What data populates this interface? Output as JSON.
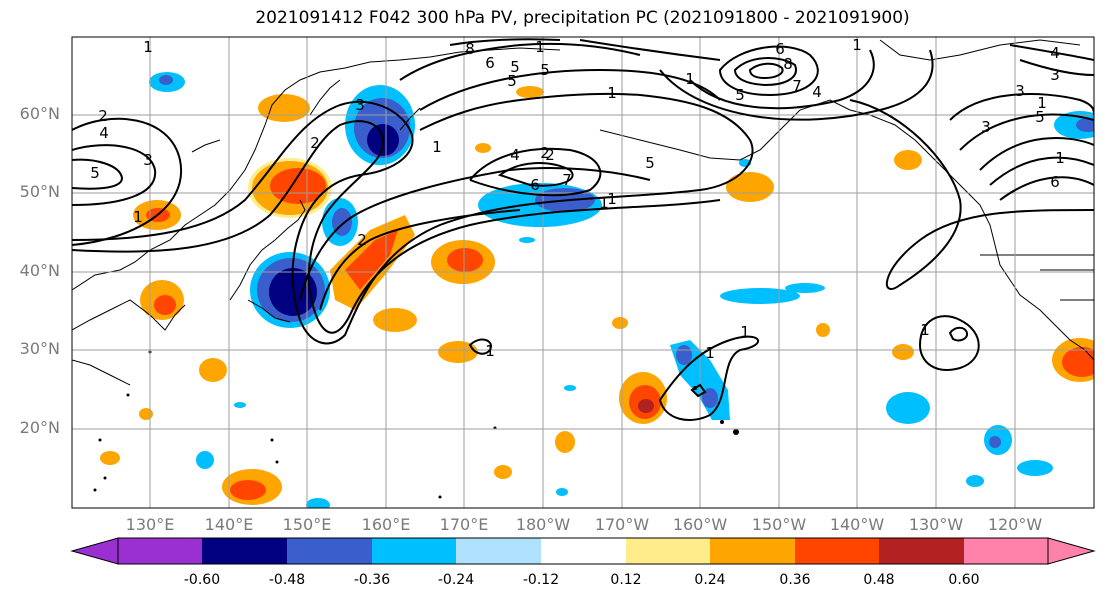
{
  "title": "2021091412 F042 300 hPa PV, precipitation PC (2021091800 - 2021091900)",
  "lat_labels": [
    "60°N",
    "50°N",
    "40°N",
    "30°N",
    "20°N"
  ],
  "lon_labels": [
    "130°E",
    "140°E",
    "150°E",
    "160°E",
    "170°E",
    "180°W",
    "170°W",
    "160°W",
    "150°W",
    "140°W",
    "130°W",
    "120°W"
  ],
  "colorbar": {
    "colors": [
      "#9b30d0",
      "#000080",
      "#3a5fcd",
      "#00bfff",
      "#b0e2ff",
      "#ffffff",
      "#ffec8b",
      "#ffa500",
      "#ff4500",
      "#b22222",
      "#ff82ab"
    ],
    "tick_labels": [
      "-0.60",
      "-0.48",
      "-0.36",
      "-0.24",
      "-0.12",
      "0.12",
      "0.24",
      "0.36",
      "0.48",
      "0.60"
    ]
  },
  "contour_labels": [
    "2",
    "4",
    "5",
    "1",
    "2",
    "5",
    "6",
    "8",
    "1",
    "2",
    "4",
    "7",
    "6",
    "5",
    "5",
    "6",
    "7",
    "8",
    "1",
    "5",
    "4",
    "3",
    "1",
    "1",
    "3",
    "4",
    "5",
    "6",
    "1",
    "2",
    "3",
    "1",
    "1",
    "1",
    "1",
    "1",
    "1",
    "2",
    "3",
    "1",
    "1",
    "1",
    "3",
    "5"
  ]
}
